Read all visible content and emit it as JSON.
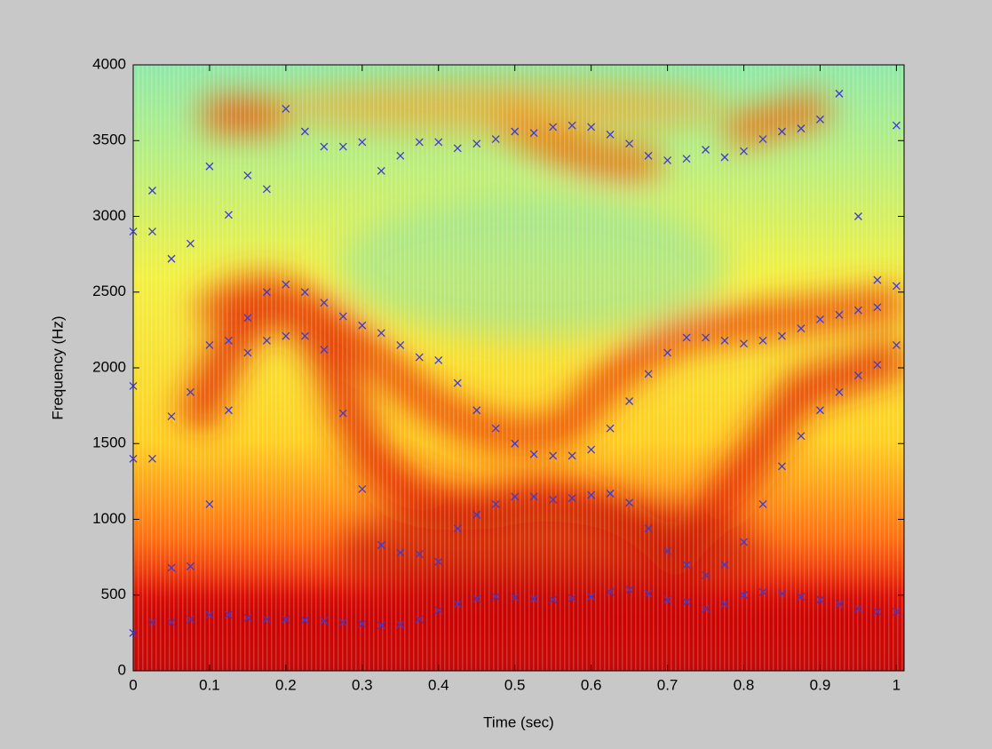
{
  "chart_data": {
    "type": "scatter",
    "xlabel": "Time (sec)",
    "ylabel": "Frequency (Hz)",
    "xlim": [
      0,
      1.01
    ],
    "ylim": [
      0,
      4000
    ],
    "xticks": [
      0,
      0.1,
      0.2,
      0.3,
      0.4,
      0.5,
      0.6,
      0.7,
      0.8,
      0.9,
      1
    ],
    "yticks": [
      0,
      500,
      1000,
      1500,
      2000,
      2500,
      3000,
      3500,
      4000
    ],
    "x": [
      0,
      0.025,
      0.05,
      0.075,
      0.1,
      0.125,
      0.15,
      0.175,
      0.2,
      0.225,
      0.25,
      0.275,
      0.3,
      0.325,
      0.35,
      0.375,
      0.4,
      0.425,
      0.45,
      0.475,
      0.5,
      0.525,
      0.55,
      0.575,
      0.6,
      0.625,
      0.65,
      0.675,
      0.7,
      0.725,
      0.75,
      0.775,
      0.8,
      0.825,
      0.85,
      0.875,
      0.9,
      0.925,
      0.95,
      0.975,
      1
    ],
    "series": [
      {
        "color": "#3b3bd6",
        "values": [
          250,
          320,
          320,
          340,
          370,
          370,
          350,
          340,
          340,
          335,
          330,
          320,
          310,
          300,
          305,
          340,
          400,
          440,
          475,
          490,
          485,
          475,
          470,
          480,
          490,
          520,
          535,
          510,
          470,
          455,
          410,
          440,
          500,
          520,
          510,
          490,
          470,
          440,
          410,
          390,
          390
        ]
      },
      {
        "color": "#3b3bd6",
        "values": [
          1400,
          1400,
          680,
          690,
          1100,
          1720,
          2100,
          2180,
          2210,
          2210,
          2120,
          1700,
          1200,
          830,
          780,
          770,
          720,
          940,
          1030,
          1100,
          1150,
          1150,
          1130,
          1140,
          1160,
          1170,
          1110,
          940,
          790,
          700,
          630,
          700,
          850,
          1100,
          1350,
          1550,
          1720,
          1840,
          1950,
          2020,
          2150
        ]
      },
      {
        "color": "#3b3bd6",
        "values": [
          1880,
          2900,
          1680,
          1840,
          2150,
          2180,
          2330,
          2500,
          2550,
          2500,
          2430,
          2340,
          2280,
          2230,
          2150,
          2070,
          2050,
          1900,
          1720,
          1600,
          1500,
          1430,
          1420,
          1420,
          1460,
          1600,
          1780,
          1960,
          2100,
          2200,
          2200,
          2180,
          2160,
          2180,
          2210,
          2260,
          2320,
          2350,
          2380,
          2400,
          2540
        ]
      },
      {
        "color": "#3b3bd6",
        "values": [
          2900,
          3170,
          2720,
          2820,
          3330,
          3010,
          3270,
          3180,
          3710,
          3560,
          3460,
          3460,
          3490,
          3300,
          3400,
          3490,
          3490,
          3450,
          3480,
          3510,
          3560,
          3550,
          3590,
          3600,
          3590,
          3540,
          3480,
          3400,
          3370,
          3380,
          3440,
          3390,
          3430,
          3510,
          3560,
          3580,
          3640,
          3810,
          3000,
          2580,
          3600
        ]
      }
    ]
  }
}
